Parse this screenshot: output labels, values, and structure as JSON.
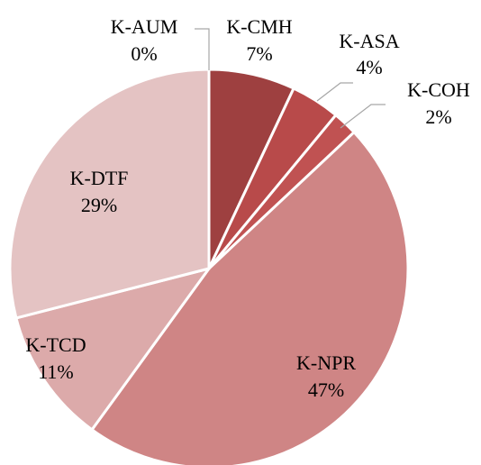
{
  "chart_data": {
    "type": "pie",
    "categories": [
      "K-AUM",
      "K-CMH",
      "K-ASA",
      "K-COH",
      "K-NPR",
      "K-TCD",
      "K-DTF"
    ],
    "values": [
      0,
      7,
      4,
      2,
      47,
      11,
      29
    ],
    "value_labels": [
      "0%",
      "7%",
      "4%",
      "2%",
      "47%",
      "11%",
      "29%"
    ],
    "colors": [
      "#9e4040",
      "#9e4040",
      "#b84a4a",
      "#c05252",
      "#cf8585",
      "#dcaaaa",
      "#e4c3c3"
    ]
  }
}
